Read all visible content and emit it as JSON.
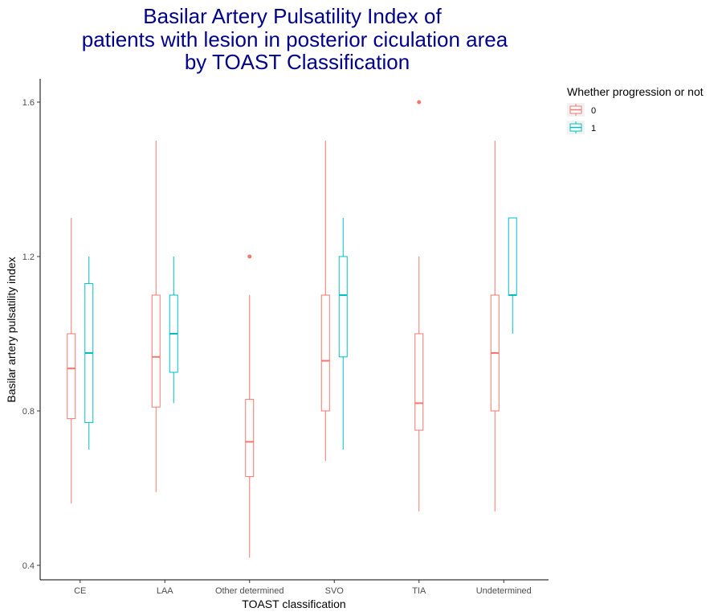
{
  "chart_data": {
    "type": "boxplot",
    "title": [
      "Basilar Artery Pulsatility Index of",
      "patients with lesion in posterior ciculation area",
      "by TOAST Classification"
    ],
    "xlabel": "TOAST classification",
    "ylabel": "Basilar artery pulsatility index",
    "categories": [
      "CE",
      "LAA",
      "Other determined",
      "SVO",
      "TIA",
      "Undetermined"
    ],
    "ylim": [
      0.365,
      1.665
    ],
    "yticks": [
      0.4,
      0.8,
      1.2,
      1.6
    ],
    "ytick_labels": [
      "0.4",
      "0.8",
      "1.2",
      "1.6"
    ],
    "legend": {
      "title": "Whether progression or not",
      "position": "right"
    },
    "series": [
      {
        "name": "0",
        "color": "#F8766D",
        "boxes": [
          {
            "category": "CE",
            "whisker_low": 0.56,
            "q1": 0.78,
            "median": 0.91,
            "q3": 1.0,
            "whisker_high": 1.3,
            "outliers": []
          },
          {
            "category": "LAA",
            "whisker_low": 0.59,
            "q1": 0.81,
            "median": 0.94,
            "q3": 1.1,
            "whisker_high": 1.5,
            "outliers": []
          },
          {
            "category": "Other determined",
            "whisker_low": 0.42,
            "q1": 0.63,
            "median": 0.72,
            "q3": 0.83,
            "whisker_high": 1.1,
            "outliers": [
              1.2
            ]
          },
          {
            "category": "SVO",
            "whisker_low": 0.67,
            "q1": 0.8,
            "median": 0.93,
            "q3": 1.1,
            "whisker_high": 1.5,
            "outliers": []
          },
          {
            "category": "TIA",
            "whisker_low": 0.54,
            "q1": 0.75,
            "median": 0.82,
            "q3": 1.0,
            "whisker_high": 1.2,
            "outliers": [
              1.6
            ]
          },
          {
            "category": "Undetermined",
            "whisker_low": 0.54,
            "q1": 0.8,
            "median": 0.95,
            "q3": 1.1,
            "whisker_high": 1.5,
            "outliers": []
          }
        ]
      },
      {
        "name": "1",
        "color": "#00BFC4",
        "boxes": [
          {
            "category": "CE",
            "whisker_low": 0.7,
            "q1": 0.77,
            "median": 0.95,
            "q3": 1.13,
            "whisker_high": 1.2,
            "outliers": []
          },
          {
            "category": "LAA",
            "whisker_low": 0.82,
            "q1": 0.9,
            "median": 1.0,
            "q3": 1.1,
            "whisker_high": 1.2,
            "outliers": []
          },
          {
            "category": "SVO",
            "whisker_low": 0.7,
            "q1": 0.94,
            "median": 1.1,
            "q3": 1.2,
            "whisker_high": 1.3,
            "outliers": []
          },
          {
            "category": "Undetermined",
            "whisker_low": 1.0,
            "q1": 1.1,
            "median": 1.1,
            "q3": 1.3,
            "whisker_high": 1.3,
            "outliers": []
          }
        ]
      }
    ]
  }
}
